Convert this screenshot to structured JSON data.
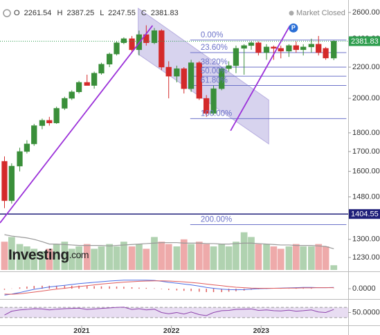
{
  "chart_data": {
    "type": "candlestick",
    "header_labels": [
      "O",
      "H",
      "L",
      "C"
    ],
    "status": "Market Closed",
    "x": [
      2020.14,
      2020.22,
      2020.31,
      2020.39,
      2020.47,
      2020.56,
      2020.64,
      2020.72,
      2020.81,
      2020.89,
      2020.97,
      2021.06,
      2021.14,
      2021.22,
      2021.31,
      2021.39,
      2021.47,
      2021.56,
      2021.64,
      2021.72,
      2021.81,
      2021.89,
      2021.97,
      2022.06,
      2022.14,
      2022.22,
      2022.31,
      2022.39,
      2022.47,
      2022.56,
      2022.64,
      2022.72,
      2022.81,
      2022.89,
      2022.97,
      2023.06,
      2023.14,
      2023.22,
      2023.31,
      2023.39,
      2023.47,
      2023.56,
      2023.64,
      2023.72,
      2023.81
    ],
    "xlim": [
      2020.09,
      2023.97
    ],
    "xticks": [
      2021,
      2022,
      2023
    ],
    "ylim": [
      1179,
      2701
    ],
    "log_scale": true,
    "yticks": [
      {
        "value": 2600,
        "label": "2600.00"
      },
      {
        "value": 2400,
        "label": "2400.00"
      },
      {
        "value": 2200,
        "label": "2200.00"
      },
      {
        "value": 2000,
        "label": "2000.00"
      },
      {
        "value": 1800,
        "label": "1800.00"
      },
      {
        "value": 1700,
        "label": "1700.00"
      },
      {
        "value": 1600,
        "label": "1600.00"
      },
      {
        "value": 1480,
        "label": "1480.00"
      },
      {
        "value": 1300,
        "label": "1300.00"
      },
      {
        "value": 1230,
        "label": "1230.00"
      }
    ],
    "open": [
      1650,
      1463,
      1626,
      1700,
      1740,
      1840,
      1870,
      1855,
      1940,
      2000,
      2040,
      2100,
      2080,
      2160,
      2220,
      2290,
      2370,
      2400,
      2320,
      2430,
      2370,
      2460,
      2200,
      2140,
      2190,
      2060,
      2230,
      2000,
      1910,
      2060,
      2190,
      2210,
      2330,
      2350,
      2370,
      2300,
      2340,
      2330,
      2310,
      2350,
      2320,
      2340,
      2360,
      2330,
      2261.54
    ],
    "high": [
      1675,
      1640,
      1720,
      1760,
      1850,
      1880,
      1890,
      1950,
      2010,
      2050,
      2110,
      2150,
      2170,
      2230,
      2300,
      2380,
      2410,
      2420,
      2460,
      2500,
      2480,
      2470,
      2240,
      2210,
      2200,
      2250,
      2240,
      2020,
      2080,
      2200,
      2240,
      2350,
      2360,
      2380,
      2380,
      2360,
      2350,
      2350,
      2360,
      2380,
      2360,
      2400,
      2420,
      2340,
      2387.25
    ],
    "low": [
      1430,
      1450,
      1600,
      1690,
      1730,
      1820,
      1840,
      1850,
      1930,
      1990,
      2030,
      2090,
      2060,
      2150,
      2200,
      2280,
      2360,
      2300,
      2280,
      2350,
      2360,
      2180,
      2000,
      2100,
      2030,
      2040,
      1990,
      1890,
      1900,
      2050,
      2170,
      2160,
      2150,
      2320,
      2280,
      2250,
      2250,
      2260,
      2270,
      2300,
      2280,
      2300,
      2280,
      2250,
      2247.55
    ],
    "close": [
      1463,
      1626,
      1700,
      1740,
      1840,
      1870,
      1855,
      1940,
      2000,
      2040,
      2100,
      2080,
      2160,
      2220,
      2290,
      2370,
      2400,
      2320,
      2430,
      2370,
      2460,
      2200,
      2140,
      2190,
      2060,
      2230,
      2000,
      1910,
      2060,
      2190,
      2210,
      2330,
      2350,
      2370,
      2300,
      2340,
      2330,
      2310,
      2350,
      2320,
      2340,
      2360,
      2300,
      2262,
      2381.83
    ],
    "up_color": "#3a8f3a",
    "down_color": "#d42a2a",
    "last_color": "#2f9e4f",
    "support_level": 1404.55,
    "support_color": "#1f1f7a",
    "fib_x": [
      2022.21,
      2023.95
    ],
    "fib_color": "#6b72c9",
    "fib_levels": [
      {
        "label": "0.00%",
        "price": 2390
      },
      {
        "label": "23.60%",
        "price": 2300
      },
      {
        "label": "38.20%",
        "price": 2200
      },
      {
        "label": "50.00%",
        "price": 2140
      },
      {
        "label": "61.80%",
        "price": 2080
      },
      {
        "label": "100.00%",
        "price": 1880
      },
      {
        "label": "200.00%",
        "price": 1360
      }
    ],
    "trendline_color": "#9b30d9",
    "trendlines": [
      {
        "x": [
          2020.09,
          2021.79
        ],
        "y": [
          1367,
          2498
        ]
      },
      {
        "x": [
          2022.66,
          2023.32
        ],
        "y": [
          1812,
          2497
        ]
      }
    ],
    "channel_color": "#b7aee0",
    "channel": {
      "x": [
        2021.63,
        2023.085
      ],
      "upper": [
        2633,
        1990
      ],
      "lower": [
        2290,
        1740
      ]
    },
    "marker": {
      "label": "P",
      "x": 2023.36,
      "price": 2480
    },
    "watermark": [
      "Investing",
      ".com"
    ],
    "volume": {
      "ylim": [
        0,
        100
      ],
      "values": [
        60,
        70,
        55,
        50,
        45,
        40,
        45,
        55,
        60,
        45,
        50,
        55,
        45,
        50,
        55,
        50,
        60,
        50,
        55,
        45,
        70,
        60,
        55,
        50,
        65,
        55,
        60,
        55,
        50,
        55,
        50,
        60,
        80,
        70,
        55,
        55,
        50,
        45,
        50,
        55,
        50,
        50,
        55,
        50,
        10
      ],
      "ma": [
        75,
        72,
        70,
        68,
        65,
        60,
        55,
        55,
        54,
        53,
        52,
        52,
        52,
        52,
        51,
        52,
        53,
        54,
        55,
        56,
        57,
        58,
        58,
        58,
        57,
        57,
        57,
        56,
        56,
        55,
        55,
        56,
        57,
        57,
        56,
        55,
        54,
        53,
        53,
        52,
        52,
        52,
        51,
        50,
        45
      ]
    },
    "macd": {
      "ylim": [
        -45,
        75
      ],
      "yticks": [
        {
          "value": 0,
          "label": "0.0000"
        }
      ],
      "macd": [
        -30,
        -25,
        -18,
        -10,
        -3,
        3,
        8,
        12,
        16,
        20,
        24,
        27,
        30,
        33,
        36,
        38,
        40,
        40,
        40,
        40,
        39,
        35,
        30,
        26,
        22,
        18,
        12,
        6,
        2,
        -2,
        -4,
        -5,
        -4,
        -2,
        0,
        1,
        2,
        3,
        4,
        5,
        6,
        6,
        5,
        5,
        6
      ],
      "signal": [
        -25,
        -26,
        -24,
        -20,
        -16,
        -11,
        -6,
        -2,
        2,
        6,
        10,
        14,
        18,
        22,
        25,
        28,
        31,
        33,
        35,
        36,
        37,
        37,
        36,
        34,
        32,
        29,
        26,
        22,
        18,
        14,
        10,
        7,
        5,
        3,
        2,
        2,
        2,
        2,
        3,
        3,
        4,
        4,
        5,
        5,
        5
      ],
      "histogram": [
        -5,
        1,
        6,
        10,
        13,
        14,
        14,
        14,
        14,
        14,
        14,
        13,
        12,
        11,
        11,
        10,
        9,
        7,
        5,
        4,
        2,
        -2,
        -6,
        -8,
        -10,
        -11,
        -14,
        -16,
        -16,
        -16,
        -14,
        -12,
        -9,
        -5,
        -2,
        -1,
        0,
        1,
        1,
        2,
        2,
        2,
        0,
        0,
        1
      ],
      "macd_color": "#4a6de5",
      "signal_color": "#e05a5a",
      "histogram_color": "#e06060"
    },
    "rsi": {
      "ylim": [
        0,
        100
      ],
      "yticks": [
        {
          "value": 50,
          "label": "50.0000"
        }
      ],
      "bands": [
        30,
        70
      ],
      "color": "#8e44ad",
      "values": [
        40,
        55,
        60,
        62,
        65,
        64,
        60,
        63,
        65,
        66,
        67,
        62,
        64,
        66,
        68,
        70,
        71,
        62,
        65,
        60,
        63,
        50,
        45,
        50,
        44,
        52,
        42,
        38,
        50,
        57,
        58,
        62,
        63,
        64,
        58,
        60,
        57,
        56,
        59,
        55,
        57,
        60,
        52,
        50,
        62
      ]
    }
  }
}
